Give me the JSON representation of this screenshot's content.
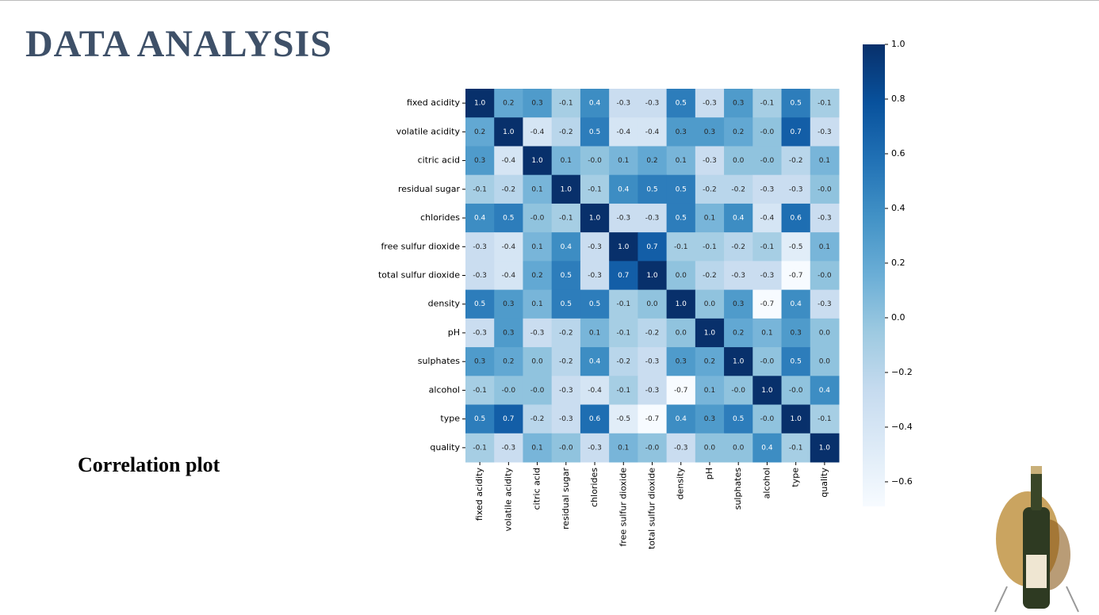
{
  "slide": {
    "title": "DATA ANALYSIS",
    "caption": "Correlation plot"
  },
  "chart_data": {
    "type": "heatmap",
    "x_categories": [
      "fixed acidity",
      "volatile acidity",
      "citric acid",
      "residual sugar",
      "chlorides",
      "free sulfur dioxide",
      "total sulfur dioxide",
      "density",
      "pH",
      "sulphates",
      "alcohol",
      "type",
      "quality"
    ],
    "y_categories": [
      "fixed acidity",
      "volatile acidity",
      "citric acid",
      "residual sugar",
      "chlorides",
      "free sulfur dioxide",
      "total sulfur dioxide",
      "density",
      "pH",
      "sulphates",
      "alcohol",
      "type",
      "quality"
    ],
    "values": [
      [
        1.0,
        0.2,
        0.3,
        -0.1,
        0.4,
        -0.3,
        -0.3,
        0.5,
        -0.3,
        0.3,
        -0.1,
        0.5,
        -0.1
      ],
      [
        0.2,
        1.0,
        -0.4,
        -0.2,
        0.5,
        -0.4,
        -0.4,
        0.3,
        0.3,
        0.2,
        -0.0,
        0.7,
        -0.3
      ],
      [
        0.3,
        -0.4,
        1.0,
        0.1,
        -0.0,
        0.1,
        0.2,
        0.1,
        -0.3,
        0.0,
        -0.0,
        -0.2,
        0.1
      ],
      [
        -0.1,
        -0.2,
        0.1,
        1.0,
        -0.1,
        0.4,
        0.5,
        0.5,
        -0.2,
        -0.2,
        -0.3,
        -0.3,
        -0.0
      ],
      [
        0.4,
        0.5,
        -0.0,
        -0.1,
        1.0,
        -0.3,
        -0.3,
        0.5,
        0.1,
        0.4,
        -0.4,
        0.6,
        -0.3
      ],
      [
        -0.3,
        -0.4,
        0.1,
        0.4,
        -0.3,
        1.0,
        0.7,
        -0.1,
        -0.1,
        -0.2,
        -0.1,
        -0.5,
        0.1
      ],
      [
        -0.3,
        -0.4,
        0.2,
        0.5,
        -0.3,
        0.7,
        1.0,
        0.0,
        -0.2,
        -0.3,
        -0.3,
        -0.7,
        -0.0
      ],
      [
        0.5,
        0.3,
        0.1,
        0.5,
        0.5,
        -0.1,
        0.0,
        1.0,
        0.0,
        0.3,
        -0.7,
        0.4,
        -0.3
      ],
      [
        -0.3,
        0.3,
        -0.3,
        -0.2,
        0.1,
        -0.1,
        -0.2,
        0.0,
        1.0,
        0.2,
        0.1,
        0.3,
        0.0
      ],
      [
        0.3,
        0.2,
        0.0,
        -0.2,
        0.4,
        -0.2,
        -0.3,
        0.3,
        0.2,
        1.0,
        -0.0,
        0.5,
        0.0
      ],
      [
        -0.1,
        -0.0,
        -0.0,
        -0.3,
        -0.4,
        -0.1,
        -0.3,
        -0.7,
        0.1,
        -0.0,
        1.0,
        -0.0,
        0.4
      ],
      [
        0.5,
        0.7,
        -0.2,
        -0.3,
        0.6,
        -0.5,
        -0.7,
        0.4,
        0.3,
        0.5,
        -0.0,
        1.0,
        -0.1
      ],
      [
        -0.1,
        -0.3,
        0.1,
        -0.0,
        -0.3,
        0.1,
        -0.0,
        -0.3,
        0.0,
        0.0,
        0.4,
        -0.1,
        1.0
      ]
    ],
    "value_labels": [
      [
        "1.0",
        "0.2",
        "0.3",
        "-0.1",
        "0.4",
        "-0.3",
        "-0.3",
        "0.5",
        "-0.3",
        "0.3",
        "-0.1",
        "0.5",
        "-0.1"
      ],
      [
        "0.2",
        "1.0",
        "-0.4",
        "-0.2",
        "0.5",
        "-0.4",
        "-0.4",
        "0.3",
        "0.3",
        "0.2",
        "-0.0",
        "0.7",
        "-0.3"
      ],
      [
        "0.3",
        "-0.4",
        "1.0",
        "0.1",
        "-0.0",
        "0.1",
        "0.2",
        "0.1",
        "-0.3",
        "0.0",
        "-0.0",
        "-0.2",
        "0.1"
      ],
      [
        "-0.1",
        "-0.2",
        "0.1",
        "1.0",
        "-0.1",
        "0.4",
        "0.5",
        "0.5",
        "-0.2",
        "-0.2",
        "-0.3",
        "-0.3",
        "-0.0"
      ],
      [
        "0.4",
        "0.5",
        "-0.0",
        "-0.1",
        "1.0",
        "-0.3",
        "-0.3",
        "0.5",
        "0.1",
        "0.4",
        "-0.4",
        "0.6",
        "-0.3"
      ],
      [
        "-0.3",
        "-0.4",
        "0.1",
        "0.4",
        "-0.3",
        "1.0",
        "0.7",
        "-0.1",
        "-0.1",
        "-0.2",
        "-0.1",
        "-0.5",
        "0.1"
      ],
      [
        "-0.3",
        "-0.4",
        "0.2",
        "0.5",
        "-0.3",
        "0.7",
        "1.0",
        "0.0",
        "-0.2",
        "-0.3",
        "-0.3",
        "-0.7",
        "-0.0"
      ],
      [
        "0.5",
        "0.3",
        "0.1",
        "0.5",
        "0.5",
        "-0.1",
        "0.0",
        "1.0",
        "0.0",
        "0.3",
        "-0.7",
        "0.4",
        "-0.3"
      ],
      [
        "-0.3",
        "0.3",
        "-0.3",
        "-0.2",
        "0.1",
        "-0.1",
        "-0.2",
        "0.0",
        "1.0",
        "0.2",
        "0.1",
        "0.3",
        "0.0"
      ],
      [
        "0.3",
        "0.2",
        "0.0",
        "-0.2",
        "0.4",
        "-0.2",
        "-0.3",
        "0.3",
        "0.2",
        "1.0",
        "-0.0",
        "0.5",
        "0.0"
      ],
      [
        "-0.1",
        "-0.0",
        "-0.0",
        "-0.3",
        "-0.4",
        "-0.1",
        "-0.3",
        "-0.7",
        "0.1",
        "-0.0",
        "1.0",
        "-0.0",
        "0.4"
      ],
      [
        "0.5",
        "0.7",
        "-0.2",
        "-0.3",
        "0.6",
        "-0.5",
        "-0.7",
        "0.4",
        "0.3",
        "0.5",
        "-0.0",
        "1.0",
        "-0.1"
      ],
      [
        "-0.1",
        "-0.3",
        "0.1",
        "-0.0",
        "-0.3",
        "0.1",
        "-0.0",
        "-0.3",
        "0.0",
        "0.0",
        "0.4",
        "-0.1",
        "1.0"
      ]
    ],
    "zlim": [
      -0.69,
      1.0
    ],
    "zticks": [
      {
        "value": -0.6,
        "label": "−0.6"
      },
      {
        "value": -0.4,
        "label": "−0.4"
      },
      {
        "value": -0.2,
        "label": "−0.2"
      },
      {
        "value": 0.0,
        "label": "0.0"
      },
      0.2,
      0.4,
      0.6,
      0.8,
      {
        "value": 1.0,
        "label": "1.0"
      }
    ],
    "colormap": [
      "#f7fbff",
      "#deebf7",
      "#c6dbef",
      "#9ecae1",
      "#6baed6",
      "#4292c6",
      "#2171b5",
      "#08519c",
      "#08306b"
    ]
  }
}
